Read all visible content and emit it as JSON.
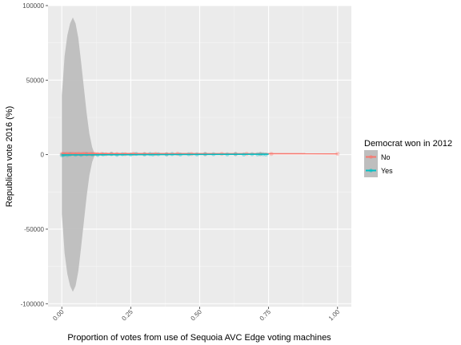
{
  "chart_data": {
    "type": "scatter",
    "title": "",
    "xlabel": "Proportion of votes from use of Sequoia AVC Edge voting machines",
    "ylabel": "Republican vote 2016 (%)",
    "xlim": [
      -0.05,
      1.05
    ],
    "ylim": [
      -102000,
      100000
    ],
    "xticks": [
      0,
      0.25,
      0.5,
      0.75,
      1.0
    ],
    "xtick_labels": [
      "0.00",
      "0.25",
      "0.50",
      "0.75",
      "1.00"
    ],
    "yticks": [
      -100000,
      -50000,
      0,
      50000,
      100000
    ],
    "ytick_labels": [
      "-100000",
      "-50000",
      "0",
      "50000",
      "100000"
    ],
    "grid": true,
    "legend": {
      "title": "Democrat won in 2012",
      "position": "right",
      "entries": [
        "No",
        "Yes"
      ]
    },
    "confidence_band": {
      "color": "#bebebe",
      "x": [
        0,
        0.005,
        0.01,
        0.02,
        0.03,
        0.04,
        0.05,
        0.06,
        0.07,
        0.08,
        0.09,
        0.1,
        0.11,
        0.12
      ],
      "half_width": [
        40000,
        52000,
        66000,
        80000,
        88000,
        92000,
        88000,
        78000,
        62000,
        45000,
        28000,
        14000,
        5000,
        0
      ]
    },
    "series": [
      {
        "name": "No",
        "color": "#f8766d",
        "fit": {
          "x": [
            0,
            1.0
          ],
          "y": [
            700,
            600
          ]
        },
        "points": {
          "x": [
            0.0,
            0.003,
            0.006,
            0.01,
            0.015,
            0.02,
            0.025,
            0.03,
            0.035,
            0.04,
            0.045,
            0.05,
            0.055,
            0.06,
            0.065,
            0.07,
            0.075,
            0.08,
            0.085,
            0.09,
            0.095,
            0.1,
            0.105,
            0.11,
            0.115,
            0.12,
            0.13,
            0.145,
            0.16,
            0.18,
            0.2,
            0.23,
            0.26,
            0.3,
            0.34,
            0.38,
            0.42,
            0.47,
            0.52,
            0.58,
            0.63,
            0.67,
            0.72,
            0.76,
            1.0
          ],
          "y": [
            500,
            200,
            600,
            300,
            450,
            700,
            250,
            550,
            400,
            650,
            300,
            500,
            350,
            600,
            450,
            200,
            550,
            400,
            700,
            300,
            500,
            250,
            600,
            450,
            350,
            550,
            400,
            500,
            300,
            600,
            450,
            350,
            550,
            400,
            500,
            300,
            600,
            450,
            350,
            500,
            400,
            550,
            450,
            500,
            600
          ]
        }
      },
      {
        "name": "Yes",
        "color": "#00bfc4",
        "fit": {
          "x": [
            0,
            0.75
          ],
          "y": [
            -200,
            300
          ]
        },
        "points": {
          "x": [
            0.0,
            0.005,
            0.01,
            0.02,
            0.03,
            0.05,
            0.07,
            0.09,
            0.11,
            0.13,
            0.15,
            0.18,
            0.2,
            0.22,
            0.25,
            0.27,
            0.3,
            0.32,
            0.33,
            0.35,
            0.38,
            0.4,
            0.43,
            0.46,
            0.49,
            0.52,
            0.55,
            0.6,
            0.63,
            0.66,
            0.69,
            0.71,
            0.72,
            0.73,
            0.74
          ],
          "y": [
            -400,
            -200,
            100,
            -300,
            200,
            0,
            -100,
            300,
            100,
            -200,
            200,
            400,
            -100,
            300,
            100,
            500,
            200,
            400,
            100,
            300,
            200,
            400,
            100,
            300,
            200,
            400,
            300,
            200,
            400,
            100,
            300,
            200,
            400,
            300,
            100
          ]
        }
      }
    ]
  }
}
